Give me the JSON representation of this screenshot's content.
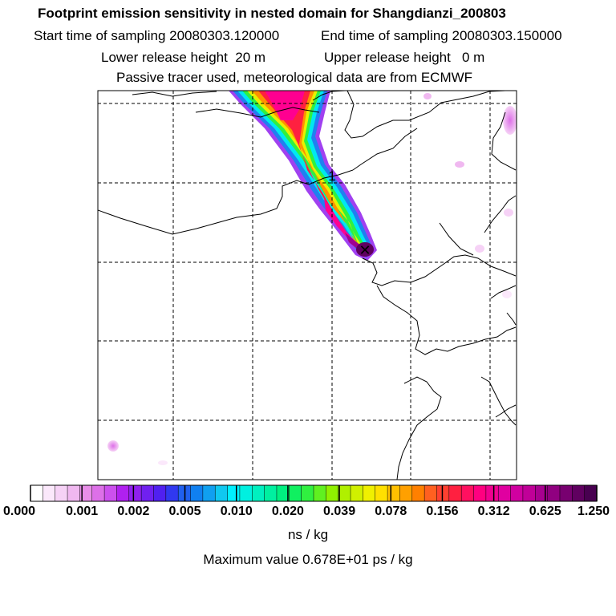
{
  "title": "Footprint emission sensitivity in nested domain for Shangdianzi_200803",
  "sampling": {
    "start_label": "Start time of sampling",
    "start_value": "20080303.120000",
    "end_label": "End time of sampling",
    "end_value": "20080303.150000"
  },
  "release": {
    "lower_label": "Lower release height",
    "lower_value": "20 m",
    "upper_label": "Upper release height",
    "upper_value": "0 m"
  },
  "tracer_note": "Passive tracer used, meteorological data are from ECMWF",
  "colorbar": {
    "tick_labels": [
      "0.000",
      "0.001",
      "0.002",
      "0.005",
      "0.010",
      "0.020",
      "0.039",
      "0.078",
      "0.156",
      "0.312",
      "0.625",
      "1.250"
    ],
    "colors": [
      "#ffffff",
      "#fbe8fb",
      "#f6d2f6",
      "#f0b8f0",
      "#e88ee8",
      "#dd70e8",
      "#cc50ee",
      "#b020f0",
      "#9020ee",
      "#7020f0",
      "#5020f0",
      "#3038f0",
      "#2060f0",
      "#1080f0",
      "#10a0f0",
      "#10c8f0",
      "#00f0ff",
      "#00f0e0",
      "#00f0c0",
      "#00f0a0",
      "#00f080",
      "#10f060",
      "#30f040",
      "#60f020",
      "#90f000",
      "#b0f000",
      "#d0f000",
      "#f0f000",
      "#ffe000",
      "#ffc000",
      "#ffa000",
      "#ff8000",
      "#ff6020",
      "#ff4030",
      "#ff2040",
      "#ff1060",
      "#ff0080",
      "#f00090",
      "#e000a0",
      "#d000a0",
      "#c00098",
      "#a80090",
      "#900080",
      "#780070",
      "#600060",
      "#480050"
    ],
    "unit": "ns / kg",
    "max_label": "Maximum value  0.678E+01 ps / kg"
  },
  "map": {
    "release_marker": "1",
    "receptor_symbol": "✕"
  }
}
